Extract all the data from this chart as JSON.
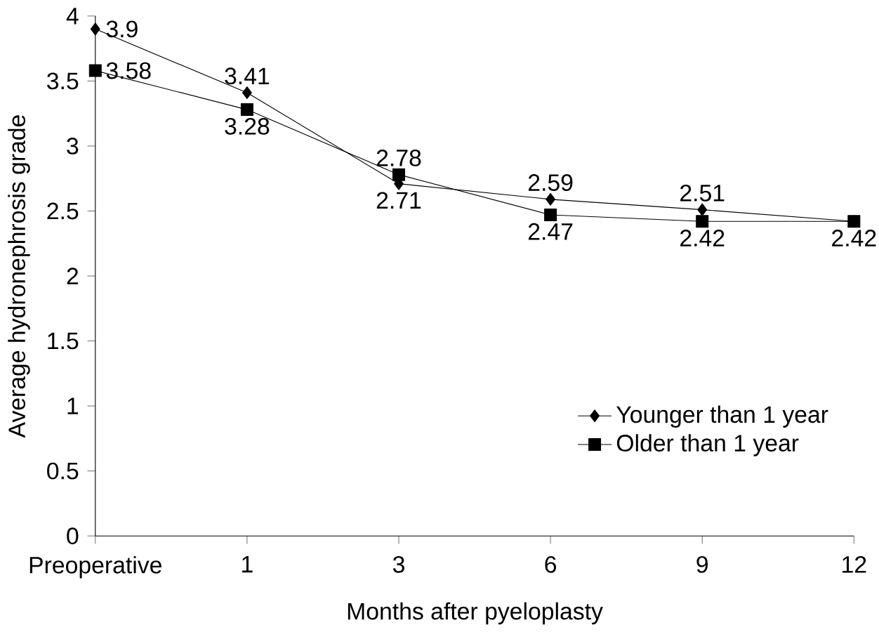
{
  "chart_data": {
    "type": "line",
    "xlabel": "Months after pyeloplasty",
    "ylabel": "Average hydronephrosis grade",
    "categories": [
      "Preoperative",
      "1",
      "3",
      "6",
      "9",
      "12"
    ],
    "series": [
      {
        "name": "Younger than 1 year",
        "color": "#000000",
        "marker": "diamond",
        "values": [
          3.9,
          3.41,
          2.71,
          2.59,
          2.51,
          2.42
        ],
        "value_labels": [
          "3.9",
          "3.41",
          "2.71",
          "2.59",
          "2.51",
          null
        ]
      },
      {
        "name": "Older than 1 year",
        "color": "#000000",
        "marker": "square",
        "values": [
          3.58,
          3.28,
          2.78,
          2.47,
          2.42,
          2.42
        ],
        "value_labels": [
          "3.58",
          "3.28",
          "2.78",
          "2.47",
          "2.42",
          "2.42"
        ]
      }
    ],
    "ylim": [
      0,
      4
    ],
    "yticks": [
      0,
      0.5,
      1,
      1.5,
      2,
      2.5,
      3,
      3.5,
      4
    ],
    "grid": false,
    "legend": "bottom right",
    "line_style": "solid"
  }
}
